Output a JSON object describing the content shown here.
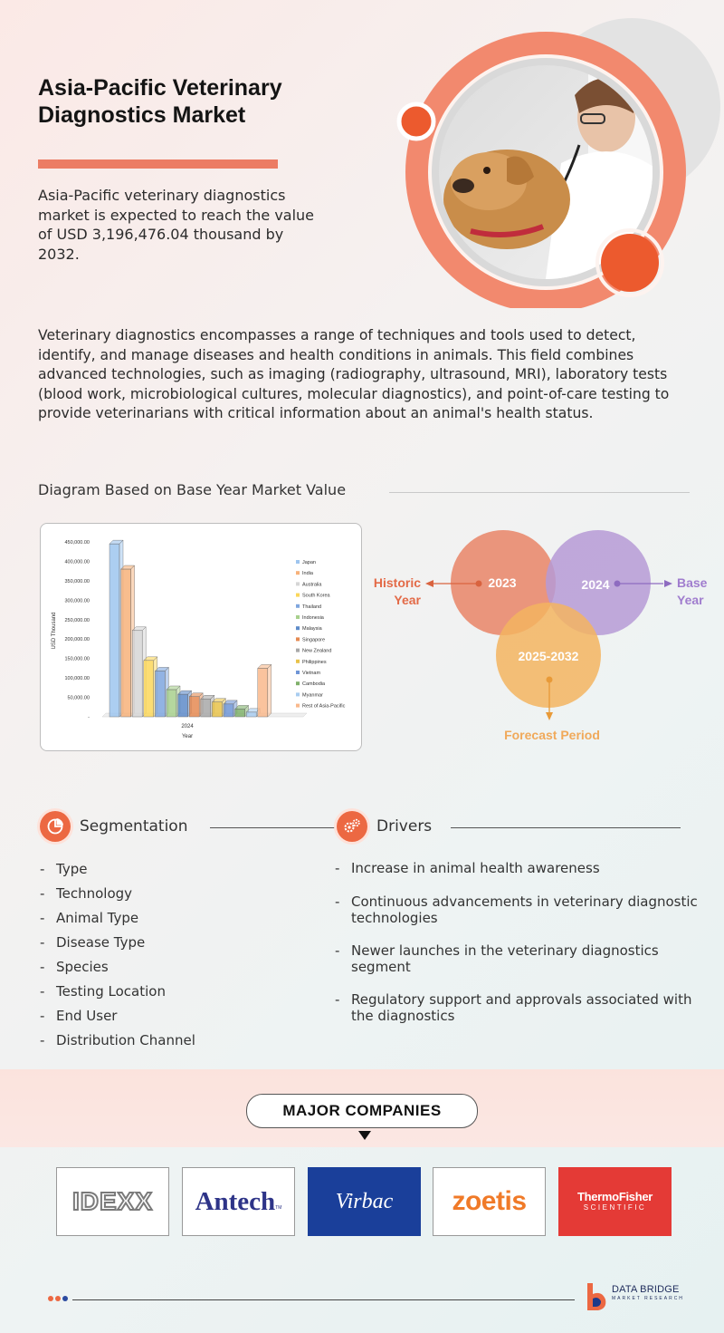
{
  "header": {
    "title_line1": "Asia-Pacific Veterinary",
    "title_line2": "Diagnostics Market",
    "intro": "Asia-Pacific veterinary diagnostics market is expected to reach the value of USD 3,196,476.04 thousand by 2032."
  },
  "description": "Veterinary diagnostics encompasses a range of techniques and tools used to detect, identify, and manage diseases and health conditions in animals. This field combines advanced technologies, such as imaging (radiography, ultrasound, MRI), laboratory tests (blood work, microbiological cultures, molecular diagnostics), and point-of-care testing to provide veterinarians with critical information about an animal's health status.",
  "diagram_section": {
    "title": "Diagram Based on Base Year Market Value"
  },
  "chart_data": {
    "type": "bar",
    "categories": [
      "2024"
    ],
    "xlabel": "Year",
    "ylabel": "USD Thousand",
    "ylim": [
      0,
      450000
    ],
    "y_ticks": [
      "-",
      "50,000.00",
      "100,000.00",
      "150,000.00",
      "200,000.00",
      "250,000.00",
      "300,000.00",
      "350,000.00",
      "400,000.00",
      "450,000.00"
    ],
    "legend_position": "right",
    "series": [
      {
        "name": "Japan",
        "values": [
          445000
        ],
        "color": "#9ec5ef"
      },
      {
        "name": "India",
        "values": [
          380000
        ],
        "color": "#f7b27a"
      },
      {
        "name": "Australia",
        "values": [
          222000
        ],
        "color": "#d6d6d6"
      },
      {
        "name": "South Korea",
        "values": [
          145000
        ],
        "color": "#fbd75a"
      },
      {
        "name": "Thailand",
        "values": [
          118000
        ],
        "color": "#7fa6de"
      },
      {
        "name": "Indonesia",
        "values": [
          70000
        ],
        "color": "#a8d08d"
      },
      {
        "name": "Malaysia",
        "values": [
          58000
        ],
        "color": "#5e8bc9"
      },
      {
        "name": "Singapore",
        "values": [
          52000
        ],
        "color": "#e58a52"
      },
      {
        "name": "New Zealand",
        "values": [
          46000
        ],
        "color": "#a8a8a8"
      },
      {
        "name": "Philippines",
        "values": [
          38000
        ],
        "color": "#e8c24a"
      },
      {
        "name": "Vietnam",
        "values": [
          33000
        ],
        "color": "#6f95d6"
      },
      {
        "name": "Cambodia",
        "values": [
          20000
        ],
        "color": "#7fb06a"
      },
      {
        "name": "Myanmar",
        "values": [
          12000
        ],
        "color": "#a9cdf0"
      },
      {
        "name": "Rest of Asia-Pacific",
        "values": [
          125000
        ],
        "color": "#f9b98c"
      }
    ]
  },
  "venn": {
    "historic_label_1": "Historic",
    "historic_label_2": "Year",
    "base_label_1": "Base",
    "base_label_2": "Year",
    "circle_historic": "2023",
    "circle_base": "2024",
    "circle_forecast": "2025-2032",
    "forecast_label": "Forecast Period",
    "colors": {
      "historic": "#e98b6f",
      "base": "#b69ad6",
      "forecast": "#f3b460"
    }
  },
  "segmentation": {
    "title": "Segmentation",
    "icon": "pie-chart-icon",
    "items": [
      "Type",
      "Technology",
      "Animal Type",
      "Disease Type",
      "Species",
      "Testing Location",
      "End User",
      "Distribution Channel"
    ]
  },
  "drivers": {
    "title": "Drivers",
    "icon": "gears-icon",
    "items": [
      "Increase in animal health awareness",
      "Continuous advancements in veterinary diagnostic technologies",
      "Newer launches in the veterinary diagnostics segment",
      "Regulatory support and approvals associated with the diagnostics"
    ]
  },
  "companies": {
    "title": "MAJOR COMPANIES",
    "logos": [
      {
        "name": "IDEXX"
      },
      {
        "name": "Antech",
        "suffix": "TM"
      },
      {
        "name": "Virbac"
      },
      {
        "name": "zoetis"
      },
      {
        "name": "ThermoFisher",
        "sub": "SCIENTIFIC"
      }
    ]
  },
  "footer": {
    "brand_line1": "DATA BRIDGE",
    "brand_line2": "MARKET RESEARCH"
  },
  "colors": {
    "accent": "#ec6842",
    "bar": "#ec7c64"
  }
}
